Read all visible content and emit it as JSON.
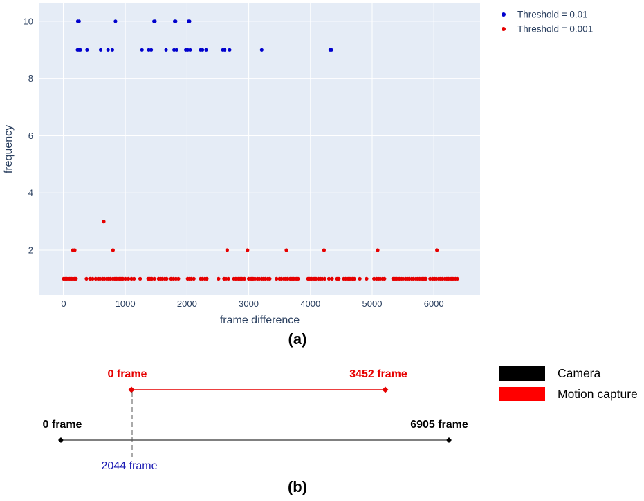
{
  "figure": {
    "caption_a": "(a)"
  },
  "chart_data": {
    "type": "scatter",
    "xlabel": "frame difference",
    "ylabel": "frequency",
    "xlim": [
      -392,
      6749
    ],
    "ylim": [
      0.43,
      10.65
    ],
    "xticks": [
      0,
      1000,
      2000,
      3000,
      4000,
      5000,
      6000
    ],
    "yticks": [
      2,
      4,
      6,
      8,
      10
    ],
    "grid": true,
    "plot_background": "#e5ecf6",
    "legend_position": "top-right",
    "series": [
      {
        "name": "Threshold = 0.01",
        "color": "#0000cd",
        "points": [
          [
            230,
            10
          ],
          [
            250,
            10
          ],
          [
            840,
            10
          ],
          [
            1465,
            10
          ],
          [
            1480,
            10
          ],
          [
            1800,
            10
          ],
          [
            1815,
            10
          ],
          [
            2025,
            10
          ],
          [
            2040,
            10
          ],
          [
            225,
            9
          ],
          [
            250,
            9
          ],
          [
            270,
            9
          ],
          [
            380,
            9
          ],
          [
            600,
            9
          ],
          [
            720,
            9
          ],
          [
            790,
            9
          ],
          [
            1270,
            9
          ],
          [
            1380,
            9
          ],
          [
            1420,
            9
          ],
          [
            1660,
            9
          ],
          [
            1790,
            9
          ],
          [
            1830,
            9
          ],
          [
            1980,
            9
          ],
          [
            2010,
            9
          ],
          [
            2050,
            9
          ],
          [
            2220,
            9
          ],
          [
            2250,
            9
          ],
          [
            2310,
            9
          ],
          [
            2580,
            9
          ],
          [
            2610,
            9
          ],
          [
            2690,
            9
          ],
          [
            3210,
            9
          ],
          [
            4320,
            9
          ],
          [
            4340,
            9
          ]
        ]
      },
      {
        "name": "Threshold = 0.001",
        "color": "#e60000",
        "points": [
          [
            650,
            3
          ],
          [
            150,
            2
          ],
          [
            180,
            2
          ],
          [
            800,
            2
          ],
          [
            2650,
            2
          ],
          [
            2980,
            2
          ],
          [
            3610,
            2
          ],
          [
            4220,
            2
          ],
          [
            5090,
            2
          ],
          [
            6050,
            2
          ],
          [
            0,
            1
          ],
          [
            25,
            1
          ],
          [
            50,
            1
          ],
          [
            75,
            1
          ],
          [
            100,
            1
          ],
          [
            125,
            1
          ],
          [
            150,
            1
          ],
          [
            175,
            1
          ],
          [
            200,
            1
          ],
          [
            370,
            1
          ],
          [
            430,
            1
          ],
          [
            470,
            1
          ],
          [
            520,
            1
          ],
          [
            560,
            1
          ],
          [
            590,
            1
          ],
          [
            630,
            1
          ],
          [
            660,
            1
          ],
          [
            700,
            1
          ],
          [
            730,
            1
          ],
          [
            760,
            1
          ],
          [
            800,
            1
          ],
          [
            830,
            1
          ],
          [
            860,
            1
          ],
          [
            900,
            1
          ],
          [
            930,
            1
          ],
          [
            960,
            1
          ],
          [
            1000,
            1
          ],
          [
            1050,
            1
          ],
          [
            1100,
            1
          ],
          [
            1140,
            1
          ],
          [
            1240,
            1
          ],
          [
            1370,
            1
          ],
          [
            1400,
            1
          ],
          [
            1430,
            1
          ],
          [
            1470,
            1
          ],
          [
            1540,
            1
          ],
          [
            1570,
            1
          ],
          [
            1600,
            1
          ],
          [
            1640,
            1
          ],
          [
            1670,
            1
          ],
          [
            1740,
            1
          ],
          [
            1780,
            1
          ],
          [
            1820,
            1
          ],
          [
            1860,
            1
          ],
          [
            2010,
            1
          ],
          [
            2040,
            1
          ],
          [
            2070,
            1
          ],
          [
            2110,
            1
          ],
          [
            2220,
            1
          ],
          [
            2250,
            1
          ],
          [
            2290,
            1
          ],
          [
            2320,
            1
          ],
          [
            2510,
            1
          ],
          [
            2600,
            1
          ],
          [
            2630,
            1
          ],
          [
            2670,
            1
          ],
          [
            2760,
            1
          ],
          [
            2790,
            1
          ],
          [
            2830,
            1
          ],
          [
            2860,
            1
          ],
          [
            2890,
            1
          ],
          [
            2930,
            1
          ],
          [
            3000,
            1
          ],
          [
            3040,
            1
          ],
          [
            3070,
            1
          ],
          [
            3100,
            1
          ],
          [
            3140,
            1
          ],
          [
            3170,
            1
          ],
          [
            3210,
            1
          ],
          [
            3240,
            1
          ],
          [
            3270,
            1
          ],
          [
            3310,
            1
          ],
          [
            3340,
            1
          ],
          [
            3450,
            1
          ],
          [
            3500,
            1
          ],
          [
            3530,
            1
          ],
          [
            3570,
            1
          ],
          [
            3600,
            1
          ],
          [
            3630,
            1
          ],
          [
            3670,
            1
          ],
          [
            3700,
            1
          ],
          [
            3730,
            1
          ],
          [
            3770,
            1
          ],
          [
            3800,
            1
          ],
          [
            3960,
            1
          ],
          [
            3990,
            1
          ],
          [
            4020,
            1
          ],
          [
            4060,
            1
          ],
          [
            4090,
            1
          ],
          [
            4130,
            1
          ],
          [
            4160,
            1
          ],
          [
            4190,
            1
          ],
          [
            4230,
            1
          ],
          [
            4300,
            1
          ],
          [
            4350,
            1
          ],
          [
            4430,
            1
          ],
          [
            4460,
            1
          ],
          [
            4540,
            1
          ],
          [
            4570,
            1
          ],
          [
            4610,
            1
          ],
          [
            4640,
            1
          ],
          [
            4680,
            1
          ],
          [
            4710,
            1
          ],
          [
            4800,
            1
          ],
          [
            4910,
            1
          ],
          [
            5030,
            1
          ],
          [
            5070,
            1
          ],
          [
            5100,
            1
          ],
          [
            5130,
            1
          ],
          [
            5170,
            1
          ],
          [
            5200,
            1
          ],
          [
            5340,
            1
          ],
          [
            5370,
            1
          ],
          [
            5400,
            1
          ],
          [
            5440,
            1
          ],
          [
            5470,
            1
          ],
          [
            5500,
            1
          ],
          [
            5540,
            1
          ],
          [
            5570,
            1
          ],
          [
            5600,
            1
          ],
          [
            5640,
            1
          ],
          [
            5670,
            1
          ],
          [
            5710,
            1
          ],
          [
            5740,
            1
          ],
          [
            5770,
            1
          ],
          [
            5810,
            1
          ],
          [
            5840,
            1
          ],
          [
            5870,
            1
          ],
          [
            5940,
            1
          ],
          [
            5980,
            1
          ],
          [
            6010,
            1
          ],
          [
            6040,
            1
          ],
          [
            6080,
            1
          ],
          [
            6110,
            1
          ],
          [
            6140,
            1
          ],
          [
            6180,
            1
          ],
          [
            6210,
            1
          ],
          [
            6240,
            1
          ],
          [
            6280,
            1
          ],
          [
            6310,
            1
          ],
          [
            6350,
            1
          ],
          [
            6380,
            1
          ]
        ]
      }
    ]
  },
  "diagram": {
    "mocap_start_label": "0 frame",
    "mocap_end_label": "3452 frame",
    "camera_start_label": "0 frame",
    "camera_end_label": "6905 frame",
    "offset_label": "2044 frame",
    "caption": "(b)",
    "legend": [
      {
        "label": "Camera",
        "color": "#000000"
      },
      {
        "label": "Motion capture",
        "color": "#ff0000"
      }
    ],
    "colors": {
      "camera": "#000000",
      "mocap": "#e60000",
      "offset_label": "#1c1cb4",
      "offset_line": "#555555"
    }
  }
}
